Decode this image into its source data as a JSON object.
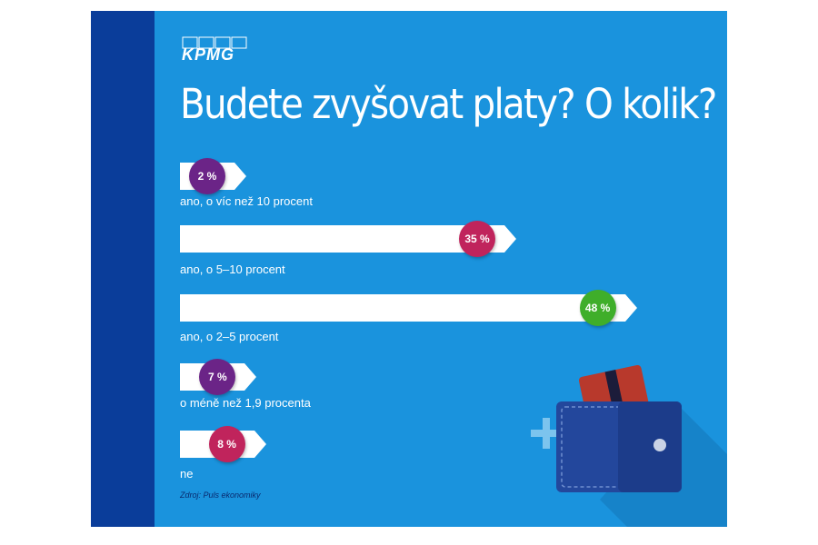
{
  "logo": {
    "text": "KPMG"
  },
  "title": "Budete zvyšovat platy? O kolik?",
  "source": "Zdroj: Puls ekonomiky",
  "colors": {
    "background": "#1a93dd",
    "stripe": "#0a3d9a",
    "purple": "#6b2487",
    "crimson": "#c0245c",
    "green": "#3fae2a"
  },
  "chart_data": {
    "type": "bar",
    "title": "Budete zvyšovat platy? O kolik?",
    "categories": [
      "ano, o víc než 10 procent",
      "ano, o 5–10 procent",
      "ano, o 2–5 procent",
      "o méně než 1,9 procenta",
      "ne"
    ],
    "values": [
      2,
      35,
      48,
      7,
      8
    ],
    "value_labels": [
      "2 %",
      "35 %",
      "48 %",
      "7 %",
      "8 %"
    ],
    "bubble_colors": [
      "#6b2487",
      "#c0245c",
      "#3fae2a",
      "#6b2487",
      "#c0245c"
    ],
    "unit": "%",
    "orientation": "horizontal",
    "xlim": [
      0,
      50
    ]
  }
}
